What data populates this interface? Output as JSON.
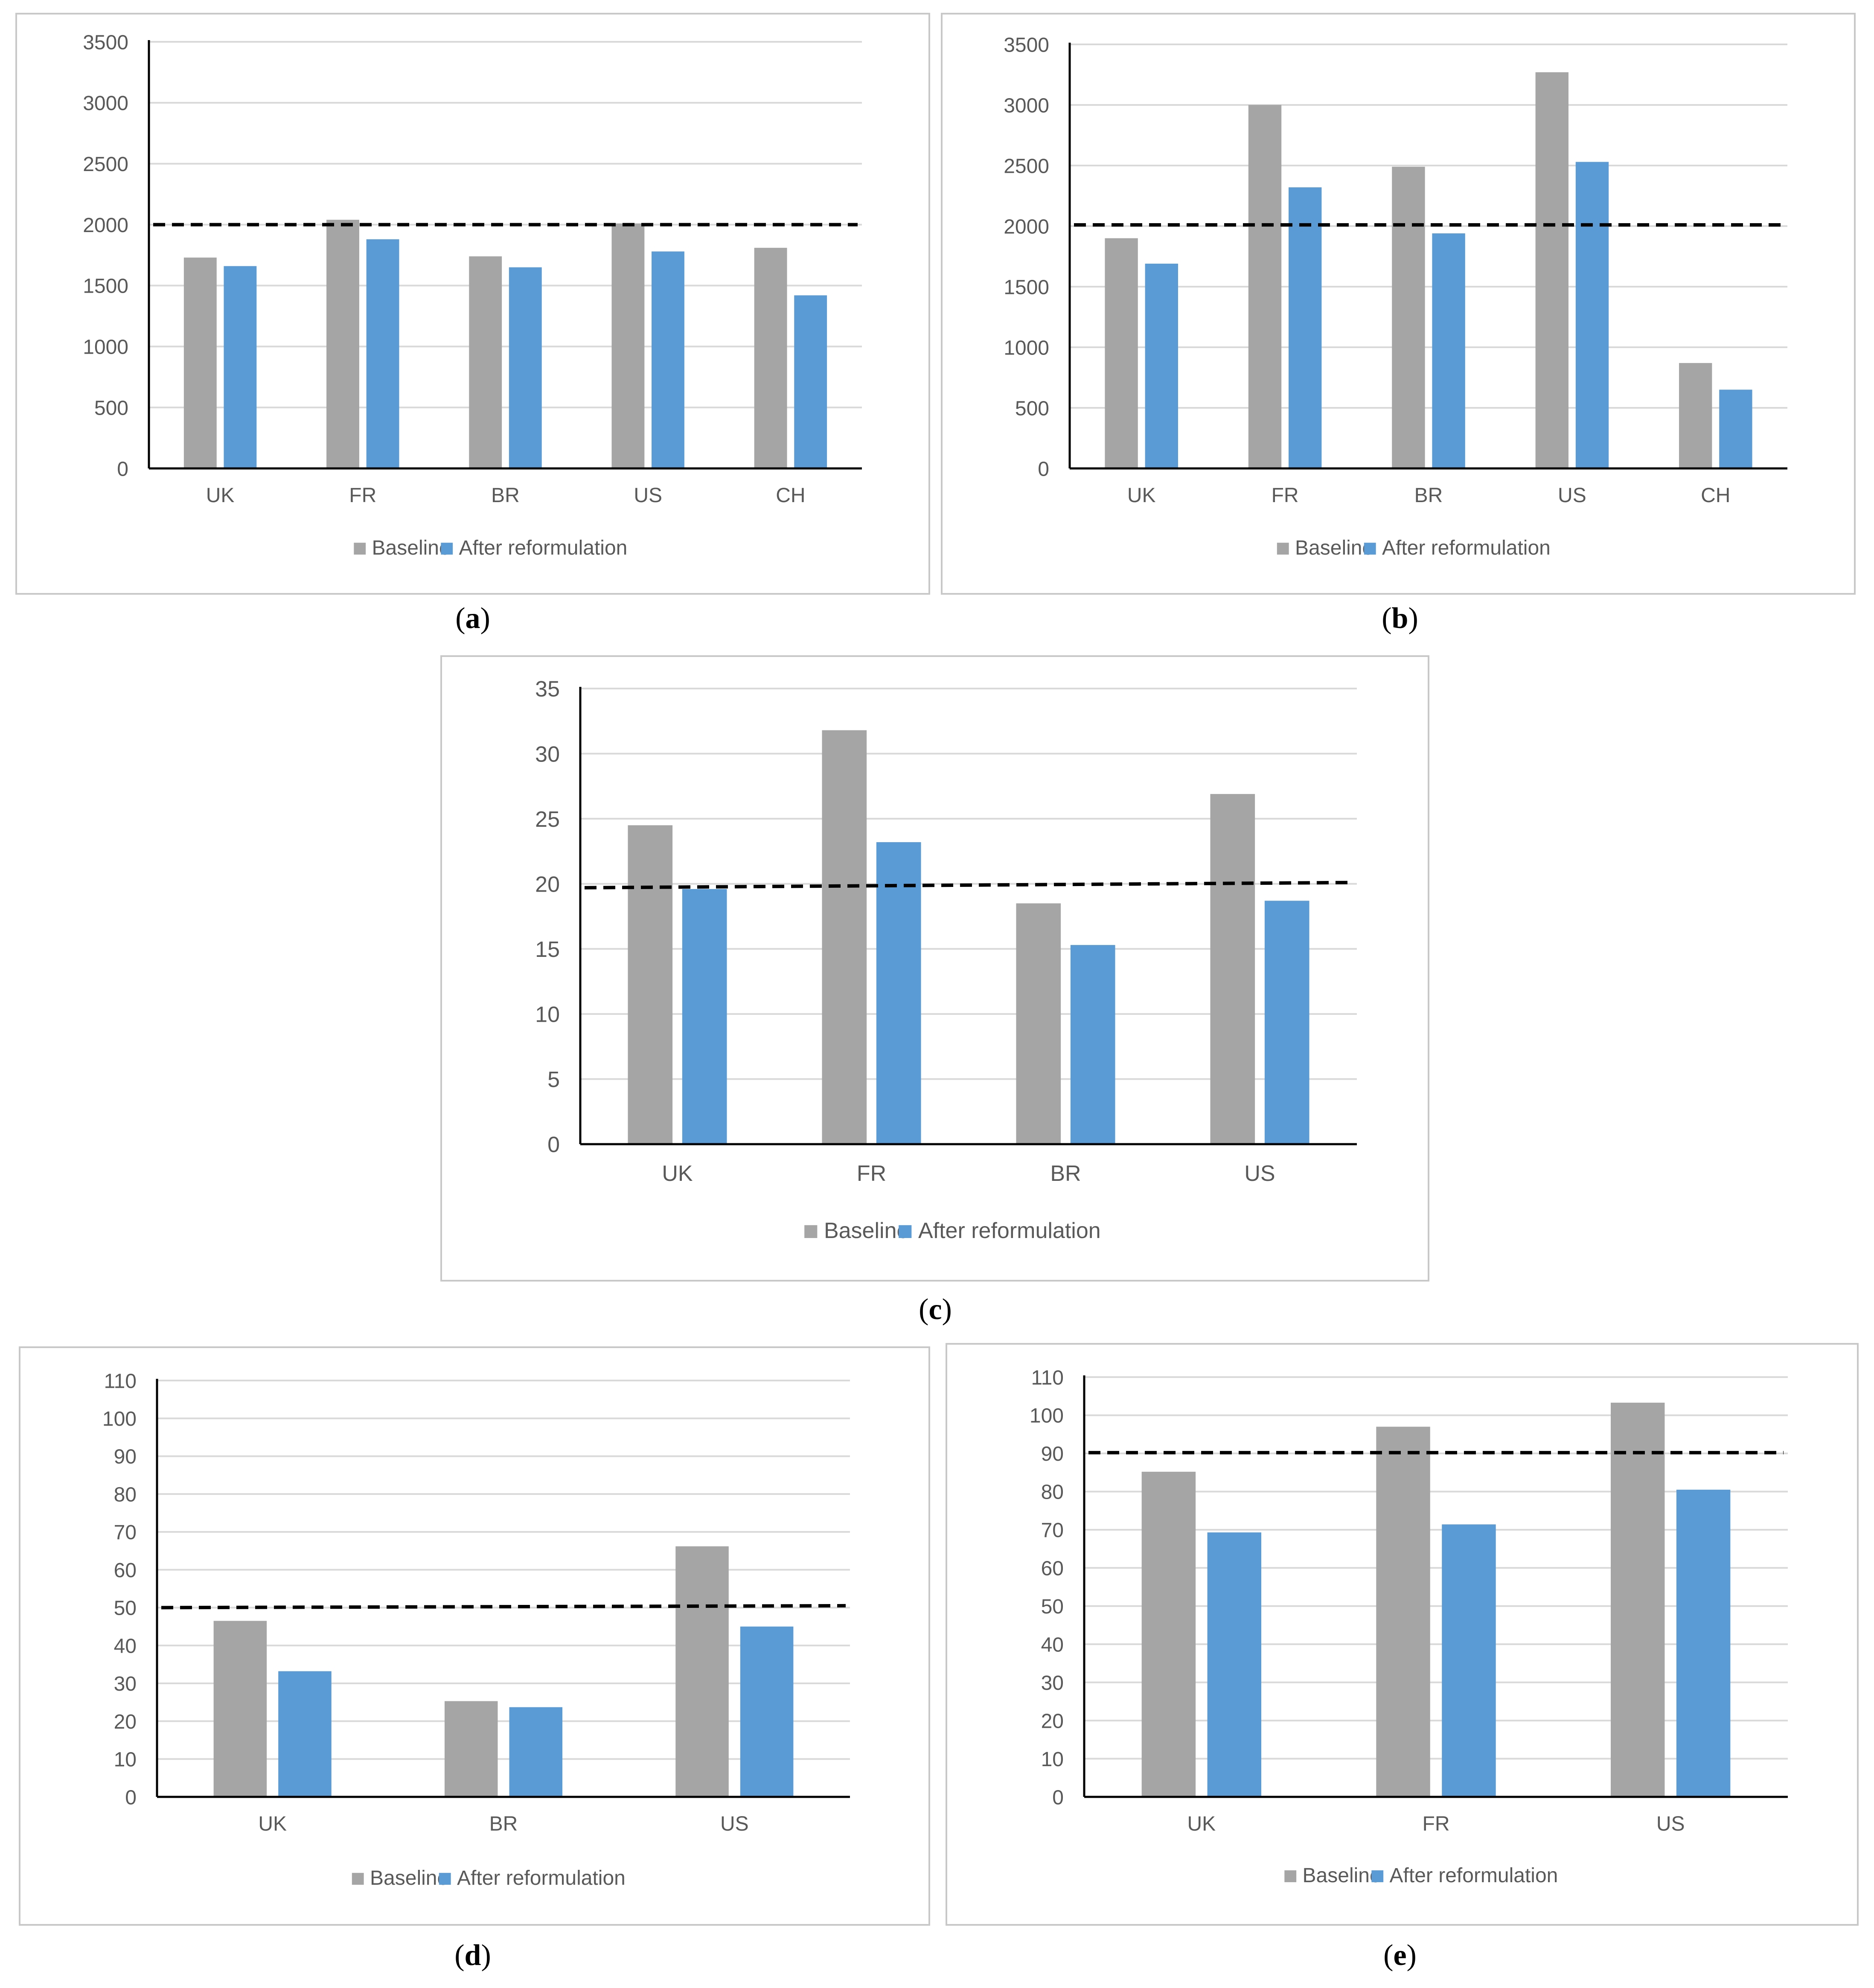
{
  "legend": {
    "baseline": "Baseline",
    "after": "After reformulation"
  },
  "colors": {
    "baseline": "#a5a5a5",
    "after": "#5b9bd5",
    "grid": "#d9d9d9",
    "axis": "#000000",
    "dashed": "#000000",
    "text": "#595959"
  },
  "chart_data": [
    {
      "id": "a",
      "caption": "a",
      "type": "bar",
      "categories": [
        "UK",
        "FR",
        "BR",
        "US",
        "CH"
      ],
      "series": [
        {
          "name": "Baseline",
          "values": [
            1730,
            2040,
            1740,
            2010,
            1810
          ]
        },
        {
          "name": "After reformulation",
          "values": [
            1660,
            1880,
            1650,
            1780,
            1420
          ]
        }
      ],
      "ylim": [
        0,
        3500
      ],
      "yticks": [
        0,
        500,
        1000,
        1500,
        2000,
        2500,
        3000,
        3500
      ],
      "reference_line": [
        2000,
        2000
      ],
      "legend_position": "bottom"
    },
    {
      "id": "b",
      "caption": "b",
      "type": "bar",
      "categories": [
        "UK",
        "FR",
        "BR",
        "US",
        "CH"
      ],
      "series": [
        {
          "name": "Baseline",
          "values": [
            1900,
            3000,
            2490,
            3270,
            870
          ]
        },
        {
          "name": "After reformulation",
          "values": [
            1690,
            2320,
            1940,
            2530,
            650
          ]
        }
      ],
      "ylim": [
        0,
        3500
      ],
      "yticks": [
        0,
        500,
        1000,
        1500,
        2000,
        2500,
        3000,
        3500
      ],
      "reference_line": [
        2010,
        2010
      ],
      "legend_position": "bottom"
    },
    {
      "id": "c",
      "caption": "c",
      "type": "bar",
      "categories": [
        "UK",
        "FR",
        "BR",
        "US"
      ],
      "series": [
        {
          "name": "Baseline",
          "values": [
            24.5,
            31.8,
            18.5,
            26.9
          ]
        },
        {
          "name": "After reformulation",
          "values": [
            19.6,
            23.2,
            15.3,
            18.7
          ]
        }
      ],
      "ylim": [
        0,
        35
      ],
      "yticks": [
        0,
        5,
        10,
        15,
        20,
        25,
        30,
        35
      ],
      "reference_line": [
        19.7,
        20.1
      ],
      "legend_position": "bottom"
    },
    {
      "id": "d",
      "caption": "d",
      "type": "bar",
      "categories": [
        "UK",
        "BR",
        "US"
      ],
      "series": [
        {
          "name": "Baseline",
          "values": [
            46.5,
            25.3,
            66.2
          ]
        },
        {
          "name": "After reformulation",
          "values": [
            33.2,
            23.7,
            45.0
          ]
        }
      ],
      "ylim": [
        0,
        110
      ],
      "yticks": [
        0,
        10,
        20,
        30,
        40,
        50,
        60,
        70,
        80,
        90,
        100,
        110
      ],
      "reference_line": [
        50,
        50.5
      ],
      "legend_position": "bottom"
    },
    {
      "id": "e",
      "caption": "e",
      "type": "bar",
      "categories": [
        "UK",
        "FR",
        "US"
      ],
      "series": [
        {
          "name": "Baseline",
          "values": [
            85.2,
            97.0,
            103.3
          ]
        },
        {
          "name": "After reformulation",
          "values": [
            69.3,
            71.4,
            80.5
          ]
        }
      ],
      "ylim": [
        0,
        110
      ],
      "yticks": [
        0,
        10,
        20,
        30,
        40,
        50,
        60,
        70,
        80,
        90,
        100,
        110
      ],
      "reference_line": [
        90.2,
        90.2
      ],
      "legend_position": "bottom"
    }
  ]
}
